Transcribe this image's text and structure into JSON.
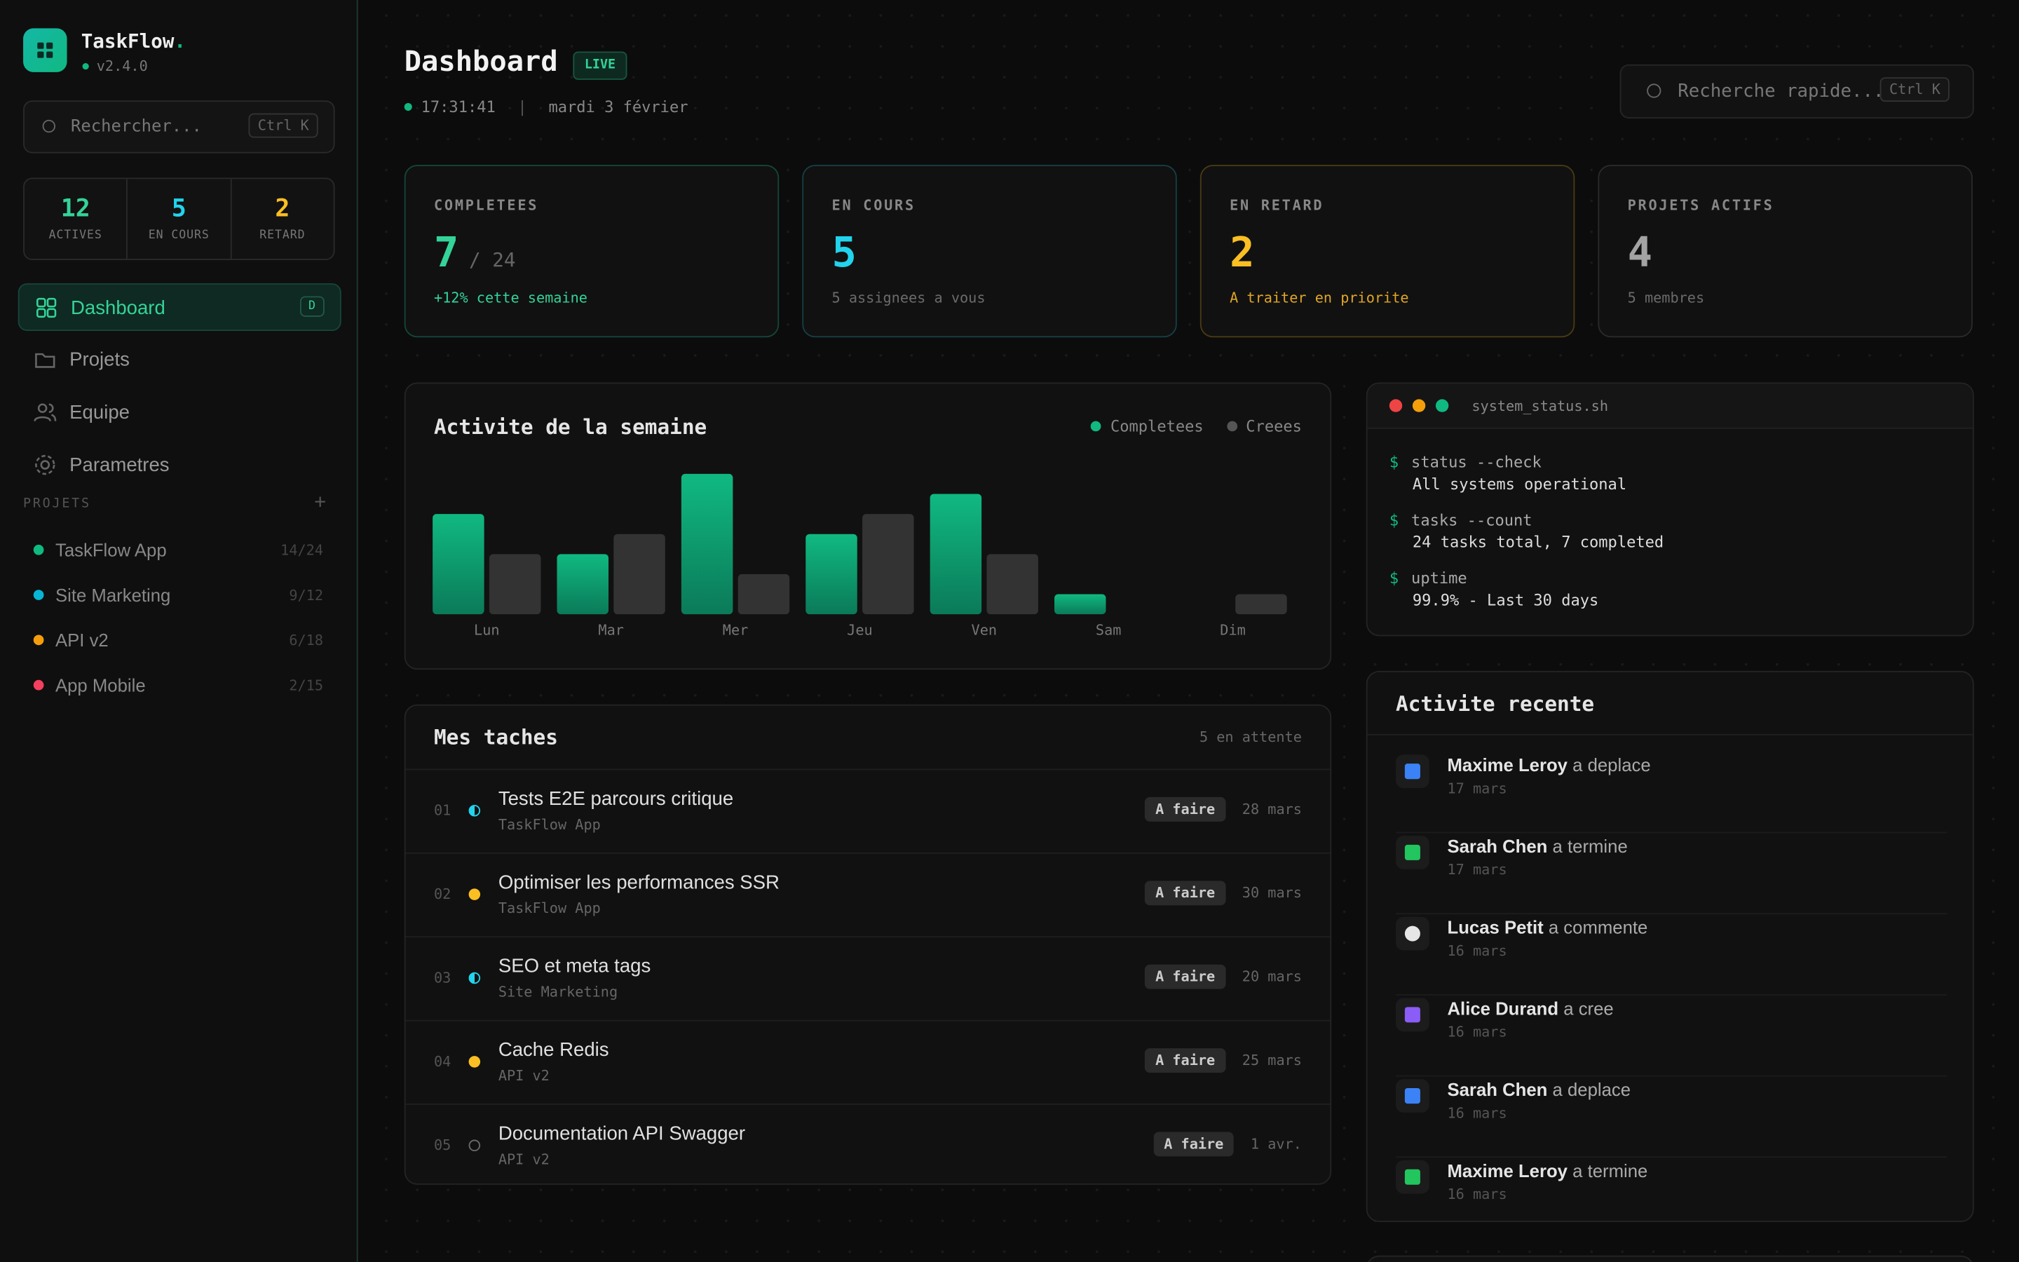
{
  "sidebar": {
    "brand": "TaskFlow",
    "brand_dot": ".",
    "version": "v2.4.0",
    "search_placeholder": "Rechercher...",
    "search_shortcut": "Ctrl K",
    "stats": [
      {
        "value": 12,
        "label": "ACTIVES",
        "color": "#34d399"
      },
      {
        "value": 5,
        "label": "EN COURS",
        "color": "#22d3ee"
      },
      {
        "value": 2,
        "label": "RETARD",
        "color": "#fbbf24"
      }
    ],
    "nav": [
      {
        "label": "Dashboard",
        "shortcut": "D",
        "active": true
      },
      {
        "label": "Projets",
        "active": false
      },
      {
        "label": "Equipe",
        "active": false
      },
      {
        "label": "Parametres",
        "active": false
      }
    ],
    "projects_heading": "PROJETS",
    "projects_add": "+",
    "projects": [
      {
        "name": "TaskFlow App",
        "progress": "14/24",
        "color": "#10b981"
      },
      {
        "name": "Site Marketing",
        "progress": "9/12",
        "color": "#06b6d4"
      },
      {
        "name": "API v2",
        "progress": "6/18",
        "color": "#f59e0b"
      },
      {
        "name": "App Mobile",
        "progress": "2/15",
        "color": "#f43f5e"
      }
    ]
  },
  "header": {
    "title": "Dashboard",
    "badge": "LIVE",
    "time": "17:31:41",
    "separator": "|",
    "date": "mardi 3 février",
    "search_placeholder": "Recherche rapide...",
    "search_shortcut": "Ctrl K"
  },
  "kpis": [
    {
      "label": "COMPLETEES",
      "value": 7,
      "suffix": "/ 24",
      "note": "+12% cette semaine",
      "color": "#34d399",
      "note_color": "#34d399",
      "border": "#14463a"
    },
    {
      "label": "EN COURS",
      "value": 5,
      "note": "5 assignees a vous",
      "color": "#22d3ee",
      "note_color": "#6b6b6b",
      "border": "#153f45"
    },
    {
      "label": "EN RETARD",
      "value": 2,
      "note": "A traiter en priorite",
      "color": "#fbbf24",
      "note_color": "#e0a526",
      "border": "#4a3a12"
    },
    {
      "label": "PROJETS ACTIFS",
      "value": 4,
      "note": "5 membres",
      "color": "#a3a3a3",
      "note_color": "#6b6b6b",
      "border": "#2a2a2a"
    }
  ],
  "activity_chart": {
    "type": "bar",
    "title": "Activite de la semaine",
    "categories": [
      "Lun",
      "Mar",
      "Mer",
      "Jeu",
      "Ven",
      "Sam",
      "Dim"
    ],
    "series": [
      {
        "name": "Completees",
        "color": "#10b981",
        "values": [
          5,
          3,
          7,
          4,
          6,
          1,
          0
        ]
      },
      {
        "name": "Creees",
        "color": "#333333",
        "values": [
          3,
          4,
          2,
          5,
          3,
          0,
          1
        ]
      }
    ],
    "ylim": [
      0,
      7
    ]
  },
  "terminal": {
    "filename": "system_status.sh",
    "entries": [
      {
        "prompt": "$",
        "command": "status --check",
        "output": "All systems operational"
      },
      {
        "prompt": "$",
        "command": "tasks --count",
        "output": "24 tasks total, 7 completed"
      },
      {
        "prompt": "$",
        "command": "uptime",
        "output": "99.9% - Last 30 days"
      }
    ]
  },
  "tasks": {
    "title": "Mes taches",
    "count": "5 en attente",
    "rows": [
      {
        "index": "01",
        "title": "Tests E2E parcours critique",
        "project": "TaskFlow App",
        "status": "A faire",
        "due": "28 mars",
        "color": "#22d3ee"
      },
      {
        "index": "02",
        "title": "Optimiser les performances SSR",
        "project": "TaskFlow App",
        "status": "A faire",
        "due": "30 mars",
        "color": "#fbbf24"
      },
      {
        "index": "03",
        "title": "SEO et meta tags",
        "project": "Site Marketing",
        "status": "A faire",
        "due": "20 mars",
        "color": "#22d3ee"
      },
      {
        "index": "04",
        "title": "Cache Redis",
        "project": "API v2",
        "status": "A faire",
        "due": "25 mars",
        "color": "#fbbf24"
      },
      {
        "index": "05",
        "title": "Documentation API Swagger",
        "project": "API v2",
        "status": "A faire",
        "due": "1 avr.",
        "color": "#6b6b6b"
      }
    ]
  },
  "recent": {
    "title": "Activite recente",
    "items": [
      {
        "user": "Maxime Leroy",
        "action": "a deplace",
        "date": "17 mars"
      },
      {
        "user": "Sarah Chen",
        "action": "a termine",
        "date": "17 mars"
      },
      {
        "user": "Lucas Petit",
        "action": "a commente",
        "date": "16 mars"
      },
      {
        "user": "Alice Durand",
        "action": "a cree",
        "date": "16 mars"
      },
      {
        "user": "Sarah Chen",
        "action": "a deplace",
        "date": "16 mars"
      },
      {
        "user": "Maxime Leroy",
        "action": "a termine",
        "date": "16 mars"
      }
    ]
  }
}
